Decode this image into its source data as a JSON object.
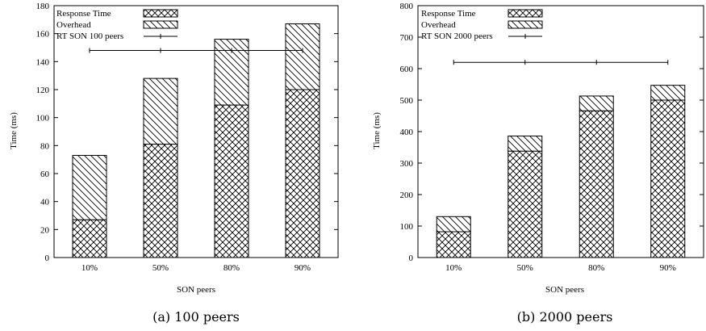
{
  "chart_data": [
    {
      "type": "bar",
      "stacked": true,
      "caption": "(a) 100 peers",
      "xlabel": "SON peers",
      "ylabel": "Time (ms)",
      "ylim": [
        0,
        180
      ],
      "yticks": [
        0,
        20,
        40,
        60,
        80,
        100,
        120,
        140,
        160,
        180
      ],
      "categories": [
        "10%",
        "50%",
        "80%",
        "90%"
      ],
      "series": [
        {
          "name": "Response Time",
          "pattern": "crosshatch",
          "values": [
            27,
            81,
            109,
            120
          ]
        },
        {
          "name": "Overhead",
          "pattern": "diagonal",
          "values": [
            46,
            47,
            47,
            47
          ]
        }
      ],
      "reference_line": {
        "name": "RT SON 100 peers",
        "value": 148
      },
      "legend_position": "top-left",
      "grid": false
    },
    {
      "type": "bar",
      "stacked": true,
      "caption": "(b) 2000 peers",
      "xlabel": "SON peers",
      "ylabel": "Time (ms)",
      "ylim": [
        0,
        800
      ],
      "yticks": [
        0,
        100,
        200,
        300,
        400,
        500,
        600,
        700,
        800
      ],
      "categories": [
        "10%",
        "50%",
        "80%",
        "90%"
      ],
      "series": [
        {
          "name": "Response Time",
          "pattern": "crosshatch",
          "values": [
            82,
            338,
            466,
            500
          ]
        },
        {
          "name": "Overhead",
          "pattern": "diagonal",
          "values": [
            48,
            48,
            47,
            47
          ]
        }
      ],
      "reference_line": {
        "name": "RT SON 2000 peers",
        "value": 620
      },
      "legend_position": "top-left",
      "grid": false
    }
  ]
}
